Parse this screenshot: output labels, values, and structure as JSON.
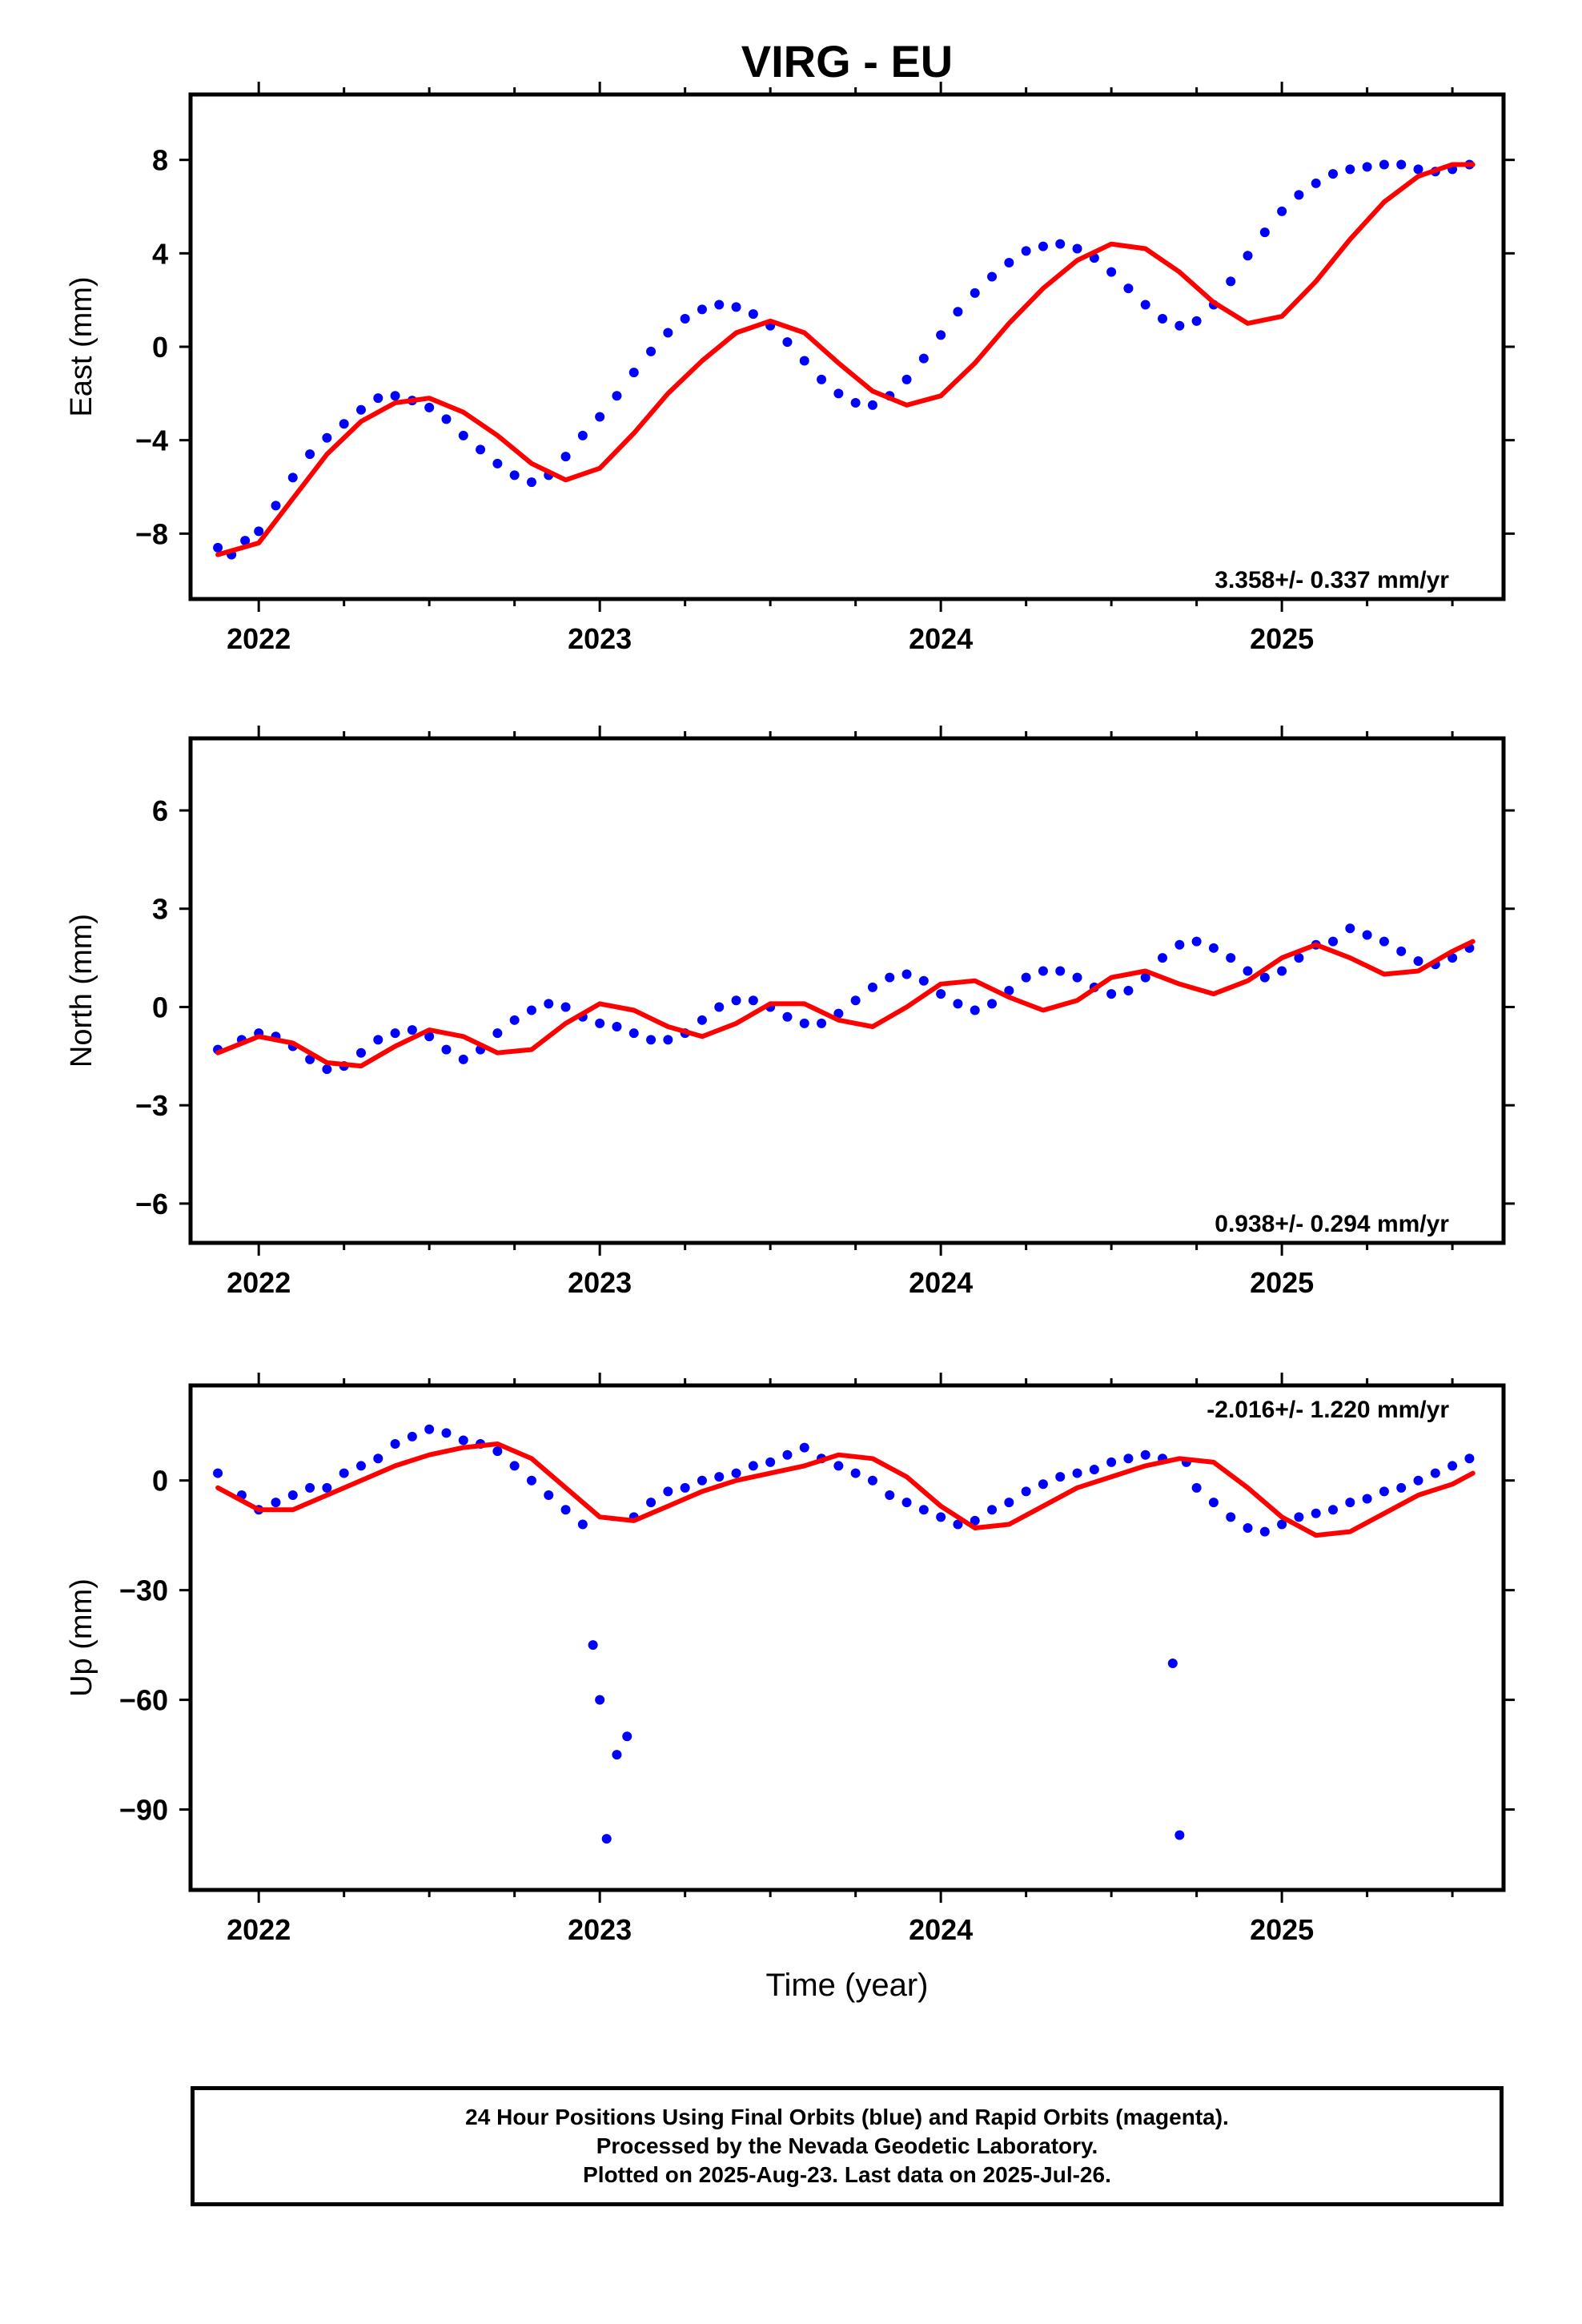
{
  "title": "VIRG - EU",
  "xlabel": "Time (year)",
  "footer": {
    "line1": "24 Hour Positions Using Final Orbits (blue) and Rapid Orbits (magenta).",
    "line2": "Processed by the Nevada Geodetic Laboratory.",
    "line3": "Plotted on 2025-Aug-23. Last data on 2025-Jul-26."
  },
  "colors": {
    "points": "#0000ff",
    "fit": "#ff0000",
    "axis": "#000000"
  },
  "chart_data": [
    {
      "type": "scatter",
      "ylabel": "East (mm)",
      "rate_label": "3.358+/- 0.337 mm/yr",
      "xlim": [
        2021.8,
        2025.65
      ],
      "ylim": [
        -10.8,
        10.8
      ],
      "xticks": [
        2022,
        2023,
        2024,
        2025
      ],
      "yticks": [
        -8,
        -4,
        0,
        4,
        8
      ],
      "yticklabels": [
        "−8",
        "−4",
        "0",
        "4",
        "8"
      ],
      "series": [
        {
          "kind": "points",
          "x": [
            2021.88,
            2021.92,
            2021.96,
            2022.0,
            2022.05,
            2022.1,
            2022.15,
            2022.2,
            2022.25,
            2022.3,
            2022.35,
            2022.4,
            2022.45,
            2022.5,
            2022.55,
            2022.6,
            2022.65,
            2022.7,
            2022.75,
            2022.8,
            2022.85,
            2022.9,
            2022.95,
            2023.0,
            2023.05,
            2023.1,
            2023.15,
            2023.2,
            2023.25,
            2023.3,
            2023.35,
            2023.4,
            2023.45,
            2023.5,
            2023.55,
            2023.6,
            2023.65,
            2023.7,
            2023.75,
            2023.8,
            2023.85,
            2023.9,
            2023.95,
            2024.0,
            2024.05,
            2024.1,
            2024.15,
            2024.2,
            2024.25,
            2024.3,
            2024.35,
            2024.4,
            2024.45,
            2024.5,
            2024.55,
            2024.6,
            2024.65,
            2024.7,
            2024.75,
            2024.8,
            2024.85,
            2024.9,
            2024.95,
            2025.0,
            2025.05,
            2025.1,
            2025.15,
            2025.2,
            2025.25,
            2025.3,
            2025.35,
            2025.4,
            2025.45,
            2025.5,
            2025.55
          ],
          "y": [
            -8.6,
            -8.9,
            -8.3,
            -7.9,
            -6.8,
            -5.6,
            -4.6,
            -3.9,
            -3.3,
            -2.7,
            -2.2,
            -2.1,
            -2.3,
            -2.6,
            -3.1,
            -3.8,
            -4.4,
            -5.0,
            -5.5,
            -5.8,
            -5.5,
            -4.7,
            -3.8,
            -3.0,
            -2.1,
            -1.1,
            -0.2,
            0.6,
            1.2,
            1.6,
            1.8,
            1.7,
            1.4,
            0.9,
            0.2,
            -0.6,
            -1.4,
            -2.0,
            -2.4,
            -2.5,
            -2.1,
            -1.4,
            -0.5,
            0.5,
            1.5,
            2.3,
            3.0,
            3.6,
            4.1,
            4.3,
            4.4,
            4.2,
            3.8,
            3.2,
            2.5,
            1.8,
            1.2,
            0.9,
            1.1,
            1.8,
            2.8,
            3.9,
            4.9,
            5.8,
            6.5,
            7.0,
            7.4,
            7.6,
            7.7,
            7.8,
            7.8,
            7.6,
            7.5,
            7.6,
            7.8
          ]
        },
        {
          "kind": "fit",
          "x": [
            2021.88,
            2022.0,
            2022.1,
            2022.2,
            2022.3,
            2022.4,
            2022.5,
            2022.6,
            2022.7,
            2022.8,
            2022.9,
            2023.0,
            2023.1,
            2023.2,
            2023.3,
            2023.4,
            2023.5,
            2023.6,
            2023.7,
            2023.8,
            2023.9,
            2024.0,
            2024.1,
            2024.2,
            2024.3,
            2024.4,
            2024.5,
            2024.6,
            2024.7,
            2024.8,
            2024.9,
            2025.0,
            2025.1,
            2025.2,
            2025.3,
            2025.4,
            2025.5,
            2025.56
          ],
          "y": [
            -8.9,
            -8.4,
            -6.5,
            -4.6,
            -3.2,
            -2.4,
            -2.2,
            -2.8,
            -3.8,
            -5.0,
            -5.7,
            -5.2,
            -3.7,
            -2.0,
            -0.6,
            0.6,
            1.1,
            0.6,
            -0.7,
            -1.9,
            -2.5,
            -2.1,
            -0.7,
            1.0,
            2.5,
            3.7,
            4.4,
            4.2,
            3.2,
            1.9,
            1.0,
            1.3,
            2.8,
            4.6,
            6.2,
            7.3,
            7.8,
            7.8
          ]
        }
      ]
    },
    {
      "type": "scatter",
      "ylabel": "North (mm)",
      "rate_label": "0.938+/- 0.294 mm/yr",
      "xlim": [
        2021.8,
        2025.65
      ],
      "ylim": [
        -7.2,
        8.2
      ],
      "xticks": [
        2022,
        2023,
        2024,
        2025
      ],
      "yticks": [
        -6,
        -3,
        0,
        3,
        6
      ],
      "yticklabels": [
        "−6",
        "−3",
        "0",
        "3",
        "6"
      ],
      "series": [
        {
          "kind": "points",
          "x": [
            2021.88,
            2021.95,
            2022.0,
            2022.05,
            2022.1,
            2022.15,
            2022.2,
            2022.25,
            2022.3,
            2022.35,
            2022.4,
            2022.45,
            2022.5,
            2022.55,
            2022.6,
            2022.65,
            2022.7,
            2022.75,
            2022.8,
            2022.85,
            2022.9,
            2022.95,
            2023.0,
            2023.05,
            2023.1,
            2023.15,
            2023.2,
            2023.25,
            2023.3,
            2023.35,
            2023.4,
            2023.45,
            2023.5,
            2023.55,
            2023.6,
            2023.65,
            2023.7,
            2023.75,
            2023.8,
            2023.85,
            2023.9,
            2023.95,
            2024.0,
            2024.05,
            2024.1,
            2024.15,
            2024.2,
            2024.25,
            2024.3,
            2024.35,
            2024.4,
            2024.45,
            2024.5,
            2024.55,
            2024.6,
            2024.65,
            2024.7,
            2024.75,
            2024.8,
            2024.85,
            2024.9,
            2024.95,
            2025.0,
            2025.05,
            2025.1,
            2025.15,
            2025.2,
            2025.25,
            2025.3,
            2025.35,
            2025.4,
            2025.45,
            2025.5,
            2025.55
          ],
          "y": [
            -1.3,
            -1.0,
            -0.8,
            -0.9,
            -1.2,
            -1.6,
            -1.9,
            -1.8,
            -1.4,
            -1.0,
            -0.8,
            -0.7,
            -0.9,
            -1.3,
            -1.6,
            -1.3,
            -0.8,
            -0.4,
            -0.1,
            0.1,
            0.0,
            -0.3,
            -0.5,
            -0.6,
            -0.8,
            -1.0,
            -1.0,
            -0.8,
            -0.4,
            0.0,
            0.2,
            0.2,
            0.0,
            -0.3,
            -0.5,
            -0.5,
            -0.2,
            0.2,
            0.6,
            0.9,
            1.0,
            0.8,
            0.4,
            0.1,
            -0.1,
            0.1,
            0.5,
            0.9,
            1.1,
            1.1,
            0.9,
            0.6,
            0.4,
            0.5,
            0.9,
            1.5,
            1.9,
            2.0,
            1.8,
            1.5,
            1.1,
            0.9,
            1.1,
            1.5,
            1.9,
            2.0,
            2.4,
            2.2,
            2.0,
            1.7,
            1.4,
            1.3,
            1.5,
            1.8
          ]
        },
        {
          "kind": "fit",
          "x": [
            2021.88,
            2022.0,
            2022.1,
            2022.2,
            2022.3,
            2022.4,
            2022.5,
            2022.6,
            2022.7,
            2022.8,
            2022.9,
            2023.0,
            2023.1,
            2023.2,
            2023.3,
            2023.4,
            2023.5,
            2023.6,
            2023.7,
            2023.8,
            2023.9,
            2024.0,
            2024.1,
            2024.2,
            2024.3,
            2024.4,
            2024.5,
            2024.6,
            2024.7,
            2024.8,
            2024.9,
            2025.0,
            2025.1,
            2025.2,
            2025.3,
            2025.4,
            2025.5,
            2025.56
          ],
          "y": [
            -1.4,
            -0.9,
            -1.1,
            -1.7,
            -1.8,
            -1.2,
            -0.7,
            -0.9,
            -1.4,
            -1.3,
            -0.5,
            0.1,
            -0.1,
            -0.6,
            -0.9,
            -0.5,
            0.1,
            0.1,
            -0.4,
            -0.6,
            0.0,
            0.7,
            0.8,
            0.3,
            -0.1,
            0.2,
            0.9,
            1.1,
            0.7,
            0.4,
            0.8,
            1.5,
            1.9,
            1.5,
            1.0,
            1.1,
            1.7,
            2.0
          ]
        }
      ]
    },
    {
      "type": "scatter",
      "ylabel": "Up (mm)",
      "rate_label": "-2.016+/- 1.220 mm/yr",
      "xlim": [
        2021.8,
        2025.65
      ],
      "ylim": [
        -112,
        26
      ],
      "xticks": [
        2022,
        2023,
        2024,
        2025
      ],
      "yticks": [
        -90,
        -60,
        -30,
        0
      ],
      "yticklabels": [
        "−90",
        "−60",
        "−30",
        "0"
      ],
      "series": [
        {
          "kind": "points",
          "x": [
            2021.88,
            2021.95,
            2022.0,
            2022.05,
            2022.1,
            2022.15,
            2022.2,
            2022.25,
            2022.3,
            2022.35,
            2022.4,
            2022.45,
            2022.5,
            2022.55,
            2022.6,
            2022.65,
            2022.7,
            2022.75,
            2022.8,
            2022.85,
            2022.9,
            2022.95,
            2022.98,
            2023.0,
            2023.02,
            2023.05,
            2023.08,
            2023.1,
            2023.15,
            2023.2,
            2023.25,
            2023.3,
            2023.35,
            2023.4,
            2023.45,
            2023.5,
            2023.55,
            2023.6,
            2023.65,
            2023.7,
            2023.75,
            2023.8,
            2023.85,
            2023.9,
            2023.95,
            2024.0,
            2024.05,
            2024.1,
            2024.15,
            2024.2,
            2024.25,
            2024.3,
            2024.35,
            2024.4,
            2024.45,
            2024.5,
            2024.55,
            2024.6,
            2024.65,
            2024.68,
            2024.7,
            2024.72,
            2024.75,
            2024.8,
            2024.85,
            2024.9,
            2024.95,
            2025.0,
            2025.05,
            2025.1,
            2025.15,
            2025.2,
            2025.25,
            2025.3,
            2025.35,
            2025.4,
            2025.45,
            2025.5,
            2025.55
          ],
          "y": [
            2,
            -4,
            -8,
            -6,
            -4,
            -2,
            -2,
            2,
            4,
            6,
            10,
            12,
            14,
            13,
            11,
            10,
            8,
            4,
            0,
            -4,
            -8,
            -12,
            -45,
            -60,
            -98,
            -75,
            -70,
            -10,
            -6,
            -3,
            -2,
            0,
            1,
            2,
            4,
            5,
            7,
            9,
            6,
            4,
            2,
            0,
            -4,
            -6,
            -8,
            -10,
            -12,
            -11,
            -8,
            -6,
            -3,
            -1,
            1,
            2,
            3,
            5,
            6,
            7,
            6,
            -50,
            -97,
            5,
            -2,
            -6,
            -10,
            -13,
            -14,
            -12,
            -10,
            -9,
            -8,
            -6,
            -5,
            -3,
            -2,
            0,
            2,
            4,
            6
          ]
        },
        {
          "kind": "fit",
          "x": [
            2021.88,
            2022.0,
            2022.1,
            2022.2,
            2022.3,
            2022.4,
            2022.5,
            2022.6,
            2022.7,
            2022.8,
            2022.9,
            2023.0,
            2023.1,
            2023.2,
            2023.3,
            2023.4,
            2023.5,
            2023.6,
            2023.7,
            2023.8,
            2023.9,
            2024.0,
            2024.1,
            2024.2,
            2024.3,
            2024.4,
            2024.5,
            2024.6,
            2024.7,
            2024.8,
            2024.9,
            2025.0,
            2025.1,
            2025.2,
            2025.3,
            2025.4,
            2025.5,
            2025.56
          ],
          "y": [
            -2,
            -8,
            -8,
            -4,
            0,
            4,
            7,
            9,
            10,
            6,
            -2,
            -10,
            -11,
            -7,
            -3,
            0,
            2,
            4,
            7,
            6,
            1,
            -7,
            -13,
            -12,
            -7,
            -2,
            1,
            4,
            6,
            5,
            -2,
            -10,
            -15,
            -14,
            -9,
            -4,
            -1,
            2
          ]
        }
      ]
    }
  ]
}
